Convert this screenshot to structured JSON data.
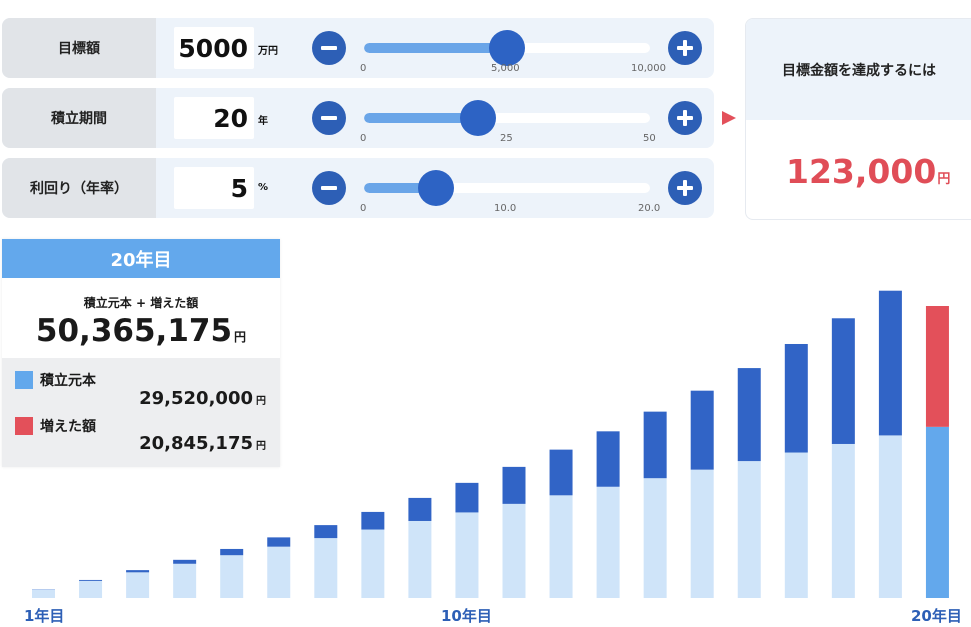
{
  "controls": [
    {
      "label": "目標額",
      "value": "5000",
      "unit": "万円",
      "position": 0.5,
      "ticks": [
        "0",
        "5,000",
        "10,000"
      ]
    },
    {
      "label": "積立期間",
      "value": "20",
      "unit": "年",
      "position": 0.4,
      "ticks": [
        "0",
        "25",
        "50"
      ]
    },
    {
      "label": "利回り（年率）",
      "value": "5",
      "unit": "%",
      "position": 0.25,
      "ticks": [
        "0",
        "10.0",
        "20.0"
      ]
    }
  ],
  "goal": {
    "title": "目標金額を達成するには",
    "amount": "123,000",
    "unit": "円"
  },
  "summary": {
    "header": "20年目",
    "total_label": "積立元本 + 増えた額",
    "total_value": "50,365,175",
    "total_unit": "円",
    "principal_label": "積立元本",
    "principal_value": "29,520,000",
    "gain_label": "増えた額",
    "gain_value": "20,845,175",
    "unit": "円"
  },
  "colors": {
    "principal": "#cfe4f9",
    "gain": "#3164c6",
    "principal_selected": "#63a8ec",
    "gain_selected": "#e3505a",
    "accent": "#2d5fb6"
  },
  "chart_data": {
    "type": "bar",
    "stacked": true,
    "categories": [
      "1年目",
      "2年目",
      "3年目",
      "4年目",
      "5年目",
      "6年目",
      "7年目",
      "8年目",
      "9年目",
      "10年目",
      "11年目",
      "12年目",
      "13年目",
      "14年目",
      "15年目",
      "16年目",
      "17年目",
      "18年目",
      "19年目",
      "20年目"
    ],
    "x_tick_labels": [
      "1年目",
      "10年目",
      "20年目"
    ],
    "series": [
      {
        "name": "積立元本",
        "values": [
          1476000,
          2952000,
          4428000,
          5904000,
          7380000,
          8856000,
          10332000,
          11808000,
          13284000,
          14760000,
          16236000,
          17712000,
          19188000,
          20664000,
          22140000,
          23616000,
          25092000,
          26568000,
          28044000,
          29520000
        ]
      },
      {
        "name": "増えた額",
        "values": [
          40000,
          160000,
          380000,
          680000,
          1080000,
          1600000,
          2240000,
          3040000,
          3980000,
          5100000,
          6380000,
          7880000,
          9560000,
          11480000,
          13620000,
          16040000,
          18720000,
          21680000,
          24960000,
          20845175
        ]
      }
    ],
    "highlighted_index": 19
  }
}
